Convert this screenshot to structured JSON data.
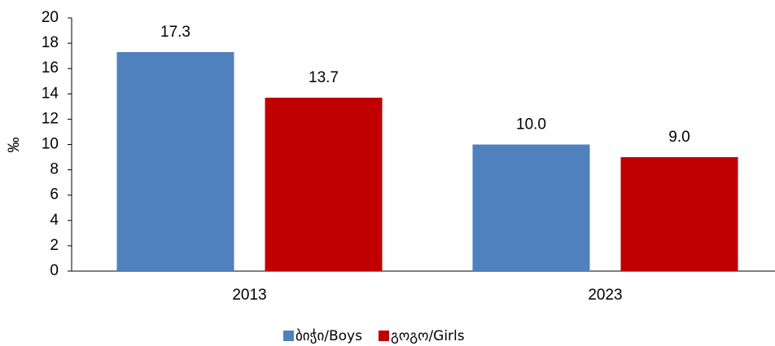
{
  "chart_data": {
    "type": "bar",
    "categories": [
      "2013",
      "2023"
    ],
    "series": [
      {
        "name": "ბიჭი/Boys",
        "color": "#4f81bd",
        "values": [
          17.3,
          10.0
        ],
        "value_labels": [
          "17.3",
          "10.0"
        ]
      },
      {
        "name": "გოგო/Girls",
        "color": "#c00000",
        "values": [
          13.7,
          9.0
        ],
        "value_labels": [
          "13.7",
          "9.0"
        ]
      }
    ],
    "y_label": "‰",
    "ylim": [
      0,
      20
    ],
    "yticks": [
      0,
      2,
      4,
      6,
      8,
      10,
      12,
      14,
      16,
      18,
      20
    ],
    "legend": "bottom"
  }
}
